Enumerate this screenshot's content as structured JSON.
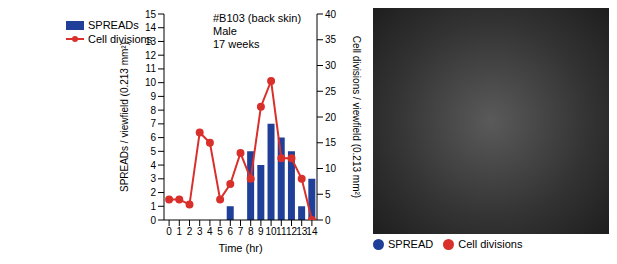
{
  "chart_data": {
    "type": "bar",
    "annotations": [
      "#B103 (back skin)",
      "Male",
      "17 weeks"
    ],
    "x_label": "Time (hr)",
    "x": [
      0,
      1,
      2,
      3,
      4,
      5,
      6,
      7,
      8,
      9,
      10,
      11,
      12,
      13,
      14
    ],
    "series": [
      {
        "name": "SPREADs",
        "type": "bar",
        "color": "#1f3f99",
        "values": [
          0,
          0,
          0,
          0,
          0,
          0,
          1,
          0,
          5,
          4,
          7,
          6,
          5,
          1,
          3
        ]
      },
      {
        "name": "Cell divisions",
        "type": "line",
        "color": "#d9302b",
        "marker": "circle",
        "axis": "y2",
        "values": [
          4,
          4,
          3,
          17,
          15,
          4,
          7,
          13,
          8,
          22,
          27,
          12,
          12,
          8,
          0
        ]
      }
    ],
    "y_label": "SPREADs / viewfield (0.213 mm²)",
    "y2_label": "Cell divisions / viewfield (0.213 mm²)",
    "ylim": [
      0,
      15
    ],
    "yticks": [
      0,
      1,
      2,
      3,
      4,
      5,
      6,
      7,
      8,
      9,
      10,
      11,
      12,
      13,
      14,
      15
    ],
    "y2lim": [
      0,
      40
    ],
    "y2ticks": [
      0,
      5,
      10,
      15,
      20,
      25,
      30,
      35,
      40
    ],
    "legend": "upper left",
    "image_legend": [
      {
        "name": "SPREAD",
        "color": "#1f3f99"
      },
      {
        "name": "Cell divisions",
        "color": "#d9302b"
      }
    ]
  }
}
